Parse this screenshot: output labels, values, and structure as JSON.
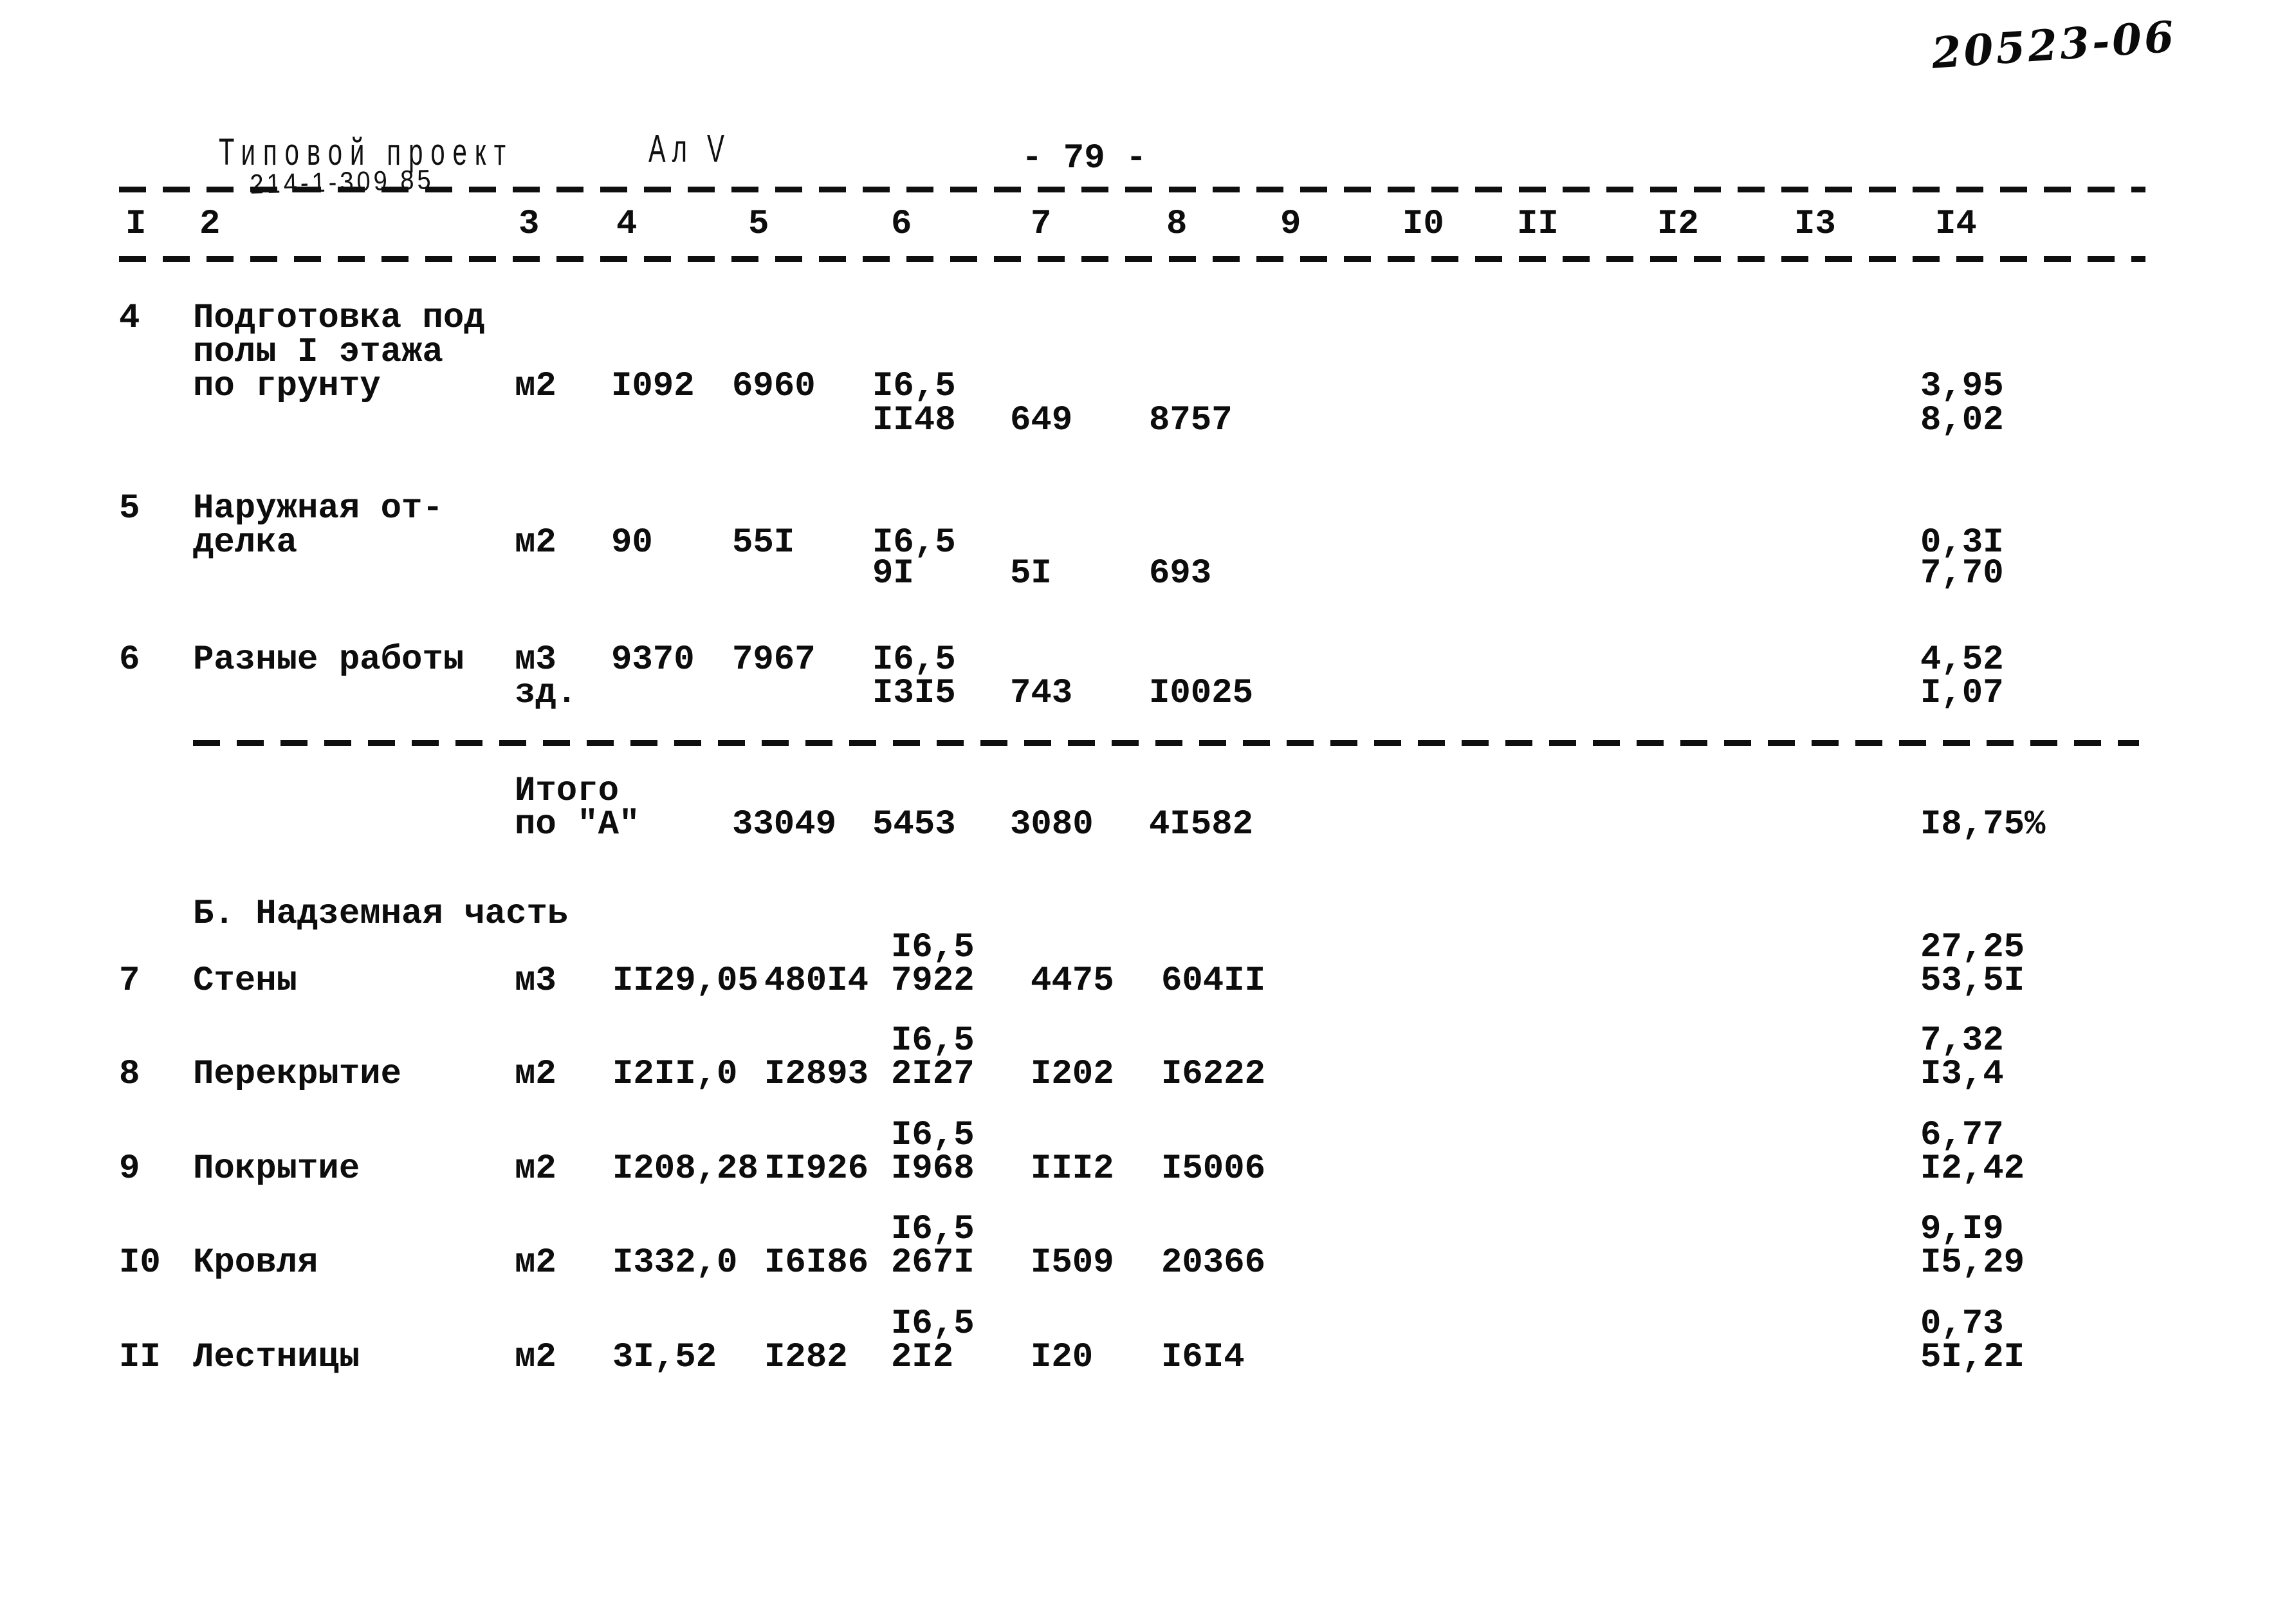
{
  "doc": {
    "handwritten_number": "20523-06",
    "stamp_title": "Типовой проект",
    "stamp_number": "214-1-309.85",
    "album_mark": "Ал V",
    "page_number": "- 79 -"
  },
  "table": {
    "column_numbers": [
      "I",
      "2",
      "3",
      "4",
      "5",
      "6",
      "7",
      "8",
      "9",
      "I0",
      "II",
      "I2",
      "I3",
      "I4"
    ],
    "section_a_rows": [
      {
        "lines": [
          {
            "c1": "4",
            "c2": "Подготовка под"
          },
          {
            "c2": "полы I этажа"
          },
          {
            "c2": "по грунту",
            "c3": "м2",
            "c4": "I092",
            "c5": "6960",
            "c6": "I6,5",
            "c14": "3,95"
          },
          {
            "c6": "II48",
            "c7": "649",
            "c8": "8757",
            "c14": "8,02"
          }
        ]
      },
      {
        "lines": [
          {
            "c1": "5",
            "c2": "Наружная от-"
          },
          {
            "c2": "делка",
            "c3": "м2",
            "c4": "90",
            "c5": "55I",
            "c6": "I6,5",
            "c14": "0,3I"
          },
          {
            "c6": "9I",
            "c7": "5I",
            "c8": "693",
            "c14": "7,70"
          }
        ]
      },
      {
        "lines": [
          {
            "c1": "6",
            "c2": "Разные работы",
            "c3": "м3",
            "c4": "9370",
            "c5": "7967",
            "c6": "I6,5",
            "c14": "4,52"
          },
          {
            "c3": "зд.",
            "c6": "I3I5",
            "c7": "743",
            "c8": "I0025",
            "c14": "I,07"
          }
        ]
      }
    ],
    "totals_row": {
      "lines": [
        {
          "c3": "Итого"
        },
        {
          "c3": "по \"А\"",
          "c5": "33049",
          "c6": "5453",
          "c7": "3080",
          "c8": "4I582",
          "c14": "I8,75%"
        }
      ]
    },
    "section_b_title": "Б. Надземная часть",
    "section_b_rows": [
      {
        "lines": [
          {
            "c6": "I6,5",
            "c14": "27,25"
          },
          {
            "c1": "7",
            "c2": "Стены",
            "c3": "м3",
            "c4": "II29,05",
            "c5": "480I4",
            "c6": "7922",
            "c7": "4475",
            "c8": "604II",
            "c14": "53,5I"
          }
        ]
      },
      {
        "lines": [
          {
            "c6": "I6,5",
            "c14": "7,32"
          },
          {
            "c1": "8",
            "c2": "Перекрытие",
            "c3": "м2",
            "c4": "I2II,0",
            "c5": "I2893",
            "c6": "2I27",
            "c7": "I202",
            "c8": "I6222",
            "c14": "I3,4"
          }
        ]
      },
      {
        "lines": [
          {
            "c6": "I6,5",
            "c14": "6,77"
          },
          {
            "c1": "9",
            "c2": "Покрытие",
            "c3": "м2",
            "c4": "I208,28",
            "c5": "II926",
            "c6": "I968",
            "c7": "III2",
            "c8": "I5006",
            "c14": "I2,42"
          }
        ]
      },
      {
        "lines": [
          {
            "c6": "I6,5",
            "c14": "9,I9"
          },
          {
            "c1": "I0",
            "c2": "Кровля",
            "c3": "м2",
            "c4": "I332,0",
            "c5": "I6I86",
            "c6": "267I",
            "c7": "I509",
            "c8": "20366",
            "c14": "I5,29"
          }
        ]
      },
      {
        "lines": [
          {
            "c6": "I6,5",
            "c14": "0,73"
          },
          {
            "c1": "II",
            "c2": "Лестницы",
            "c3": "м2",
            "c4": "3I,52",
            "c5": "I282",
            "c6": "2I2",
            "c7": "I20",
            "c8": "I6I4",
            "c14": "5I,2I"
          }
        ]
      }
    ]
  }
}
